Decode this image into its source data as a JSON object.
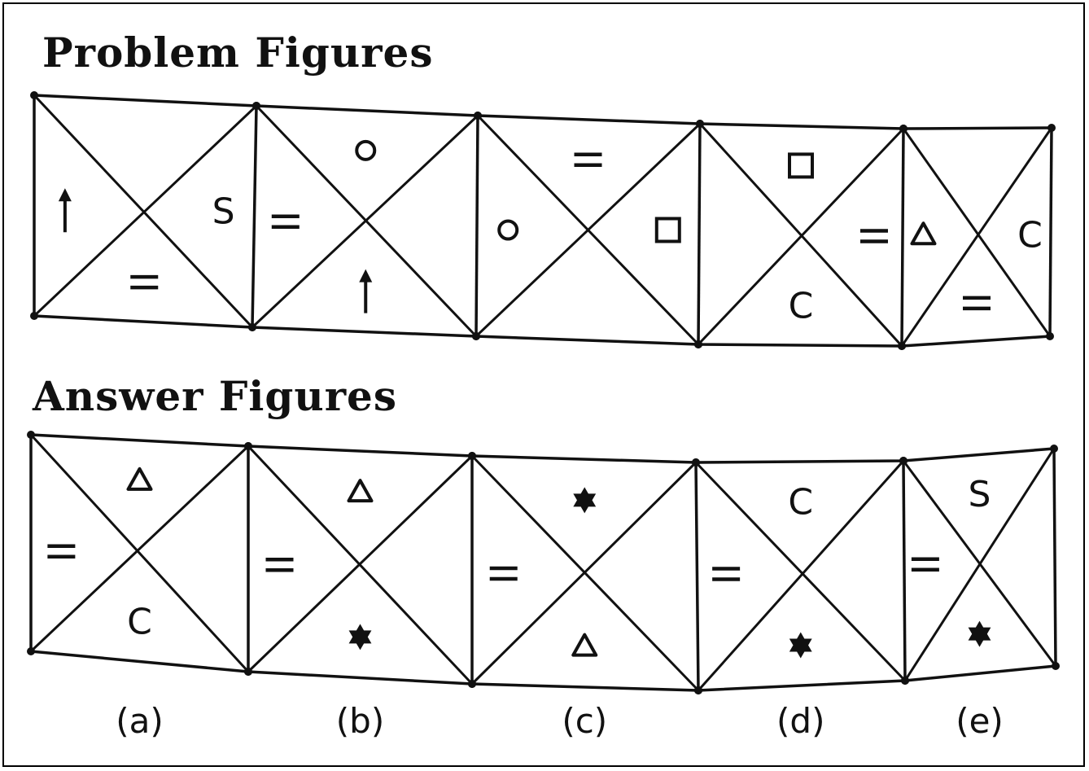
{
  "headings": {
    "problem": "Problem Figures",
    "answer": "Answer Figures"
  },
  "problem_figures": [
    {
      "top": "",
      "left": "arrow-up",
      "right": "S",
      "bottom": "="
    },
    {
      "top": "circle",
      "left": "=",
      "right": "",
      "bottom": "arrow-up"
    },
    {
      "top": "=",
      "left": "circle",
      "right": "square",
      "bottom": ""
    },
    {
      "top": "square",
      "left": "",
      "right": "=",
      "bottom": "C"
    },
    {
      "top": "",
      "left": "triangle",
      "right": "C",
      "bottom": "="
    }
  ],
  "answer_figures": [
    {
      "label": "(a)",
      "top": "triangle",
      "left": "=",
      "right": "",
      "bottom": "C"
    },
    {
      "label": "(b)",
      "top": "triangle",
      "left": "=",
      "right": "",
      "bottom": "star"
    },
    {
      "label": "(c)",
      "top": "star",
      "left": "=",
      "right": "",
      "bottom": "triangle"
    },
    {
      "label": "(d)",
      "top": "C",
      "left": "=",
      "right": "",
      "bottom": "star"
    },
    {
      "label": "(e)",
      "top": "S",
      "left": "=",
      "right": "",
      "bottom": "star"
    }
  ]
}
